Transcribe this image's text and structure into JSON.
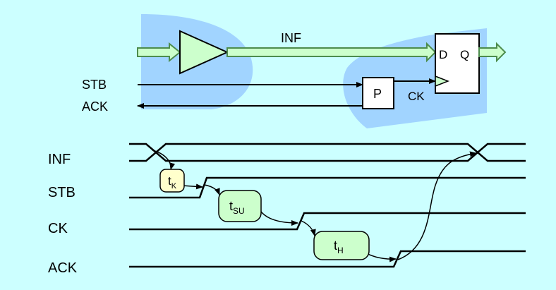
{
  "colors": {
    "background": "#ccffff",
    "region": "#99ccff",
    "bus_fill": "#ccffcc",
    "bus_stroke": "#4d8c4d",
    "tk_box": "#ffffcc",
    "box_green": "#ccffcc",
    "ck_tri": "#ccffcc"
  },
  "schematic": {
    "bus_label": "INF",
    "stb_label": "STB",
    "ack_label": "ACK",
    "pulse_block": "P",
    "ck_label": "CK",
    "ff_d": "D",
    "ff_q": "Q"
  },
  "timing": {
    "signals": [
      "INF",
      "STB",
      "CK",
      "ACK"
    ],
    "delays": {
      "tk": {
        "base": "t",
        "sub": "K"
      },
      "tsu": {
        "base": "t",
        "sub": "SU"
      },
      "th": {
        "base": "t",
        "sub": "H"
      }
    }
  }
}
